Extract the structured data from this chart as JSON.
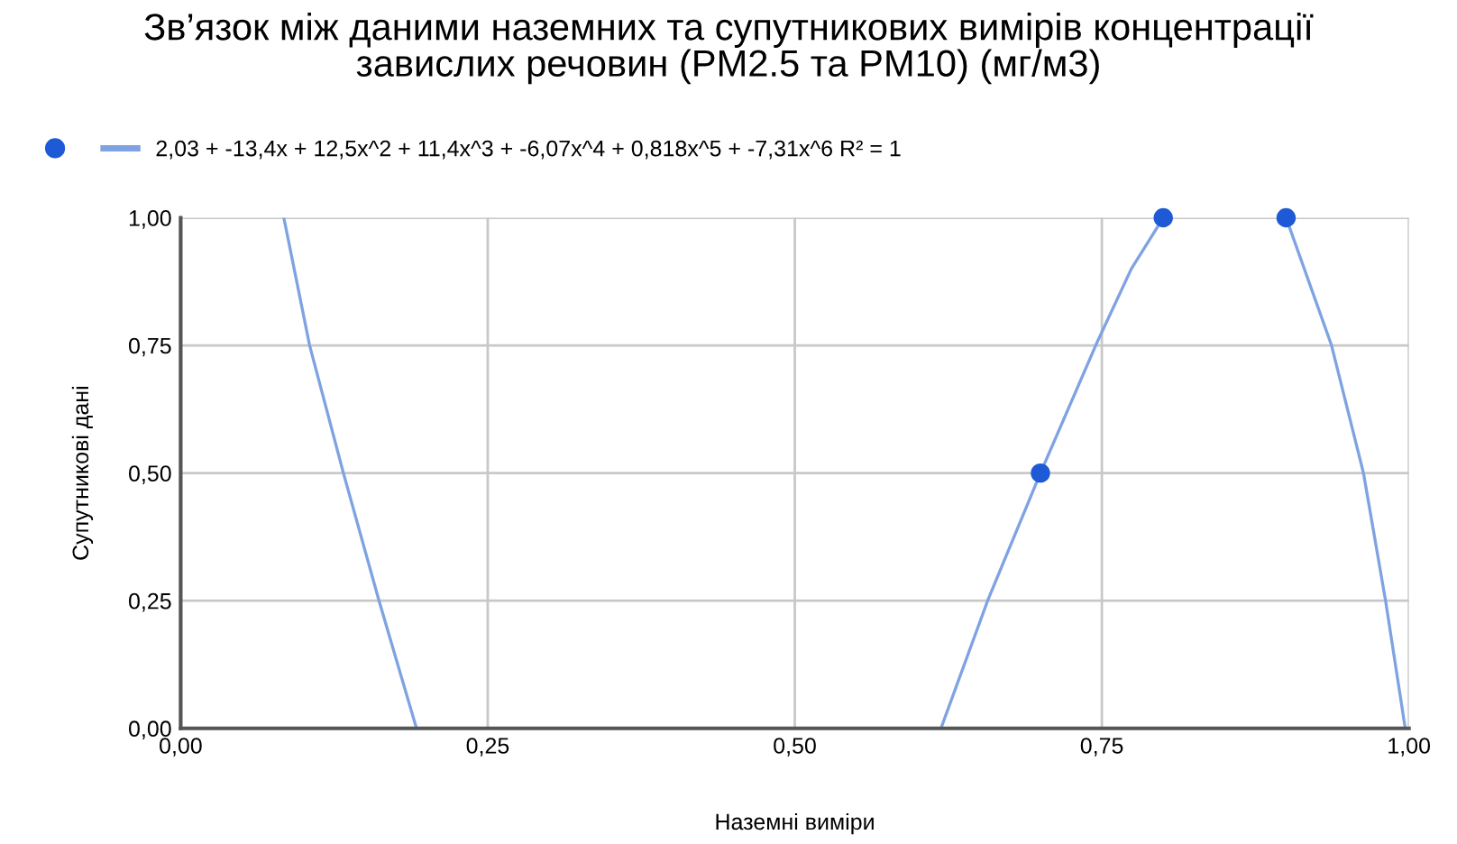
{
  "chart_data": {
    "type": "scatter",
    "title": "Зв’язок між даними наземних та супутникових вимірів концентрації\nзавислих речовин (PM2.5 та PM10) (мг/м3)",
    "xlabel": "Наземні виміри",
    "ylabel": "Супутникові дані",
    "series": [
      {
        "color": "#1f5ad6",
        "marker": "circle",
        "x": [
          0.7,
          0.8,
          0.9
        ],
        "values": [
          0.5,
          1.0,
          1.0
        ]
      },
      {
        "type": "line",
        "name": "2,03 + -13,4x + 12,5x^2 + 11,4x^3 + -6,07x^4 + 0,818x^5 + -7,31x^6 R² = 1",
        "color": "#7fa3e2",
        "marker": "none",
        "line_style": "solid",
        "x": [
          0.084,
          0.105,
          0.1325,
          0.1615,
          0.192,
          null,
          0.619,
          0.657,
          0.7,
          0.745,
          0.774,
          0.8,
          null,
          0.9,
          0.937,
          0.963,
          0.981,
          0.997
        ],
        "values": [
          1.0,
          0.75,
          0.5,
          0.25,
          0.0,
          null,
          0.0,
          0.25,
          0.5,
          0.75,
          0.9,
          1.0,
          null,
          1.0,
          0.75,
          0.5,
          0.25,
          0.0
        ]
      }
    ],
    "xlim": [
      0,
      1
    ],
    "ylim": [
      0,
      1
    ],
    "xticks": [
      {
        "value": 0,
        "label": "0,00"
      },
      {
        "value": 0.25,
        "label": "0,25"
      },
      {
        "value": 0.5,
        "label": "0,50"
      },
      {
        "value": 0.75,
        "label": "0,75"
      },
      {
        "value": 1,
        "label": "1,00"
      }
    ],
    "yticks": [
      {
        "value": 0,
        "label": "0,00"
      },
      {
        "value": 0.25,
        "label": "0,25"
      },
      {
        "value": 0.5,
        "label": "0,50"
      },
      {
        "value": 0.75,
        "label": "0,75"
      },
      {
        "value": 1,
        "label": "1,00"
      }
    ],
    "grid": true,
    "legend": "top left"
  }
}
